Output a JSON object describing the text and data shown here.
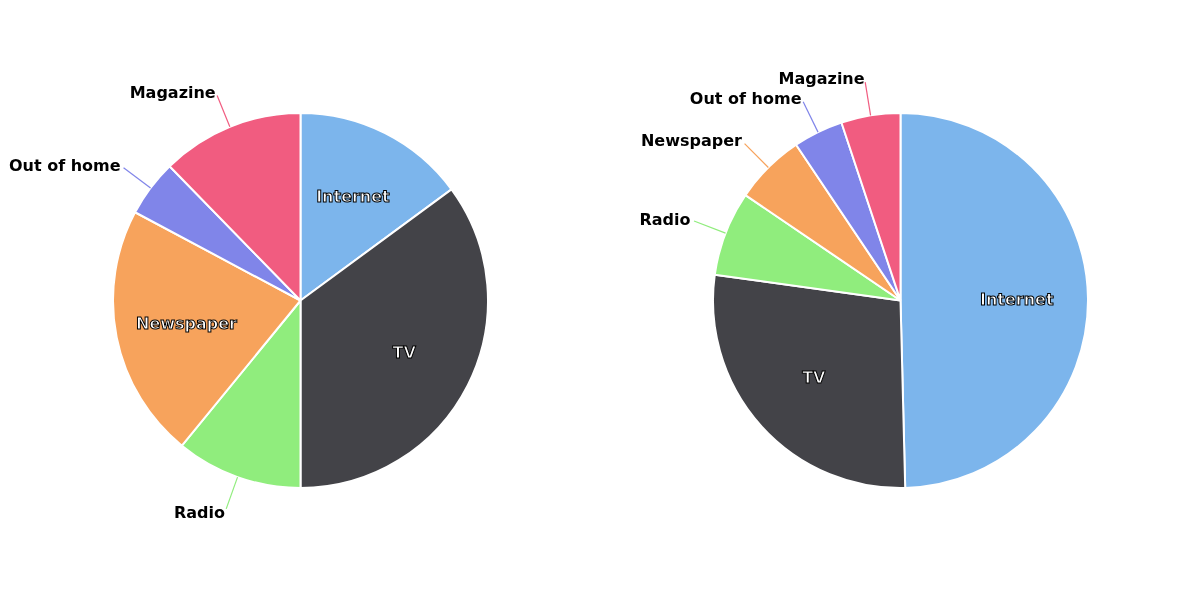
{
  "chart_data": [
    {
      "type": "pie",
      "categories": [
        "Internet",
        "TV",
        "Radio",
        "Newspaper",
        "Out of home",
        "Magazine"
      ],
      "values": [
        14.9,
        35.1,
        10.9,
        21.9,
        4.9,
        12.3
      ],
      "colors": [
        "#7cb5ec",
        "#434348",
        "#90ed7d",
        "#f7a35c",
        "#8085e9",
        "#f15c80"
      ]
    },
    {
      "type": "pie",
      "categories": [
        "Internet",
        "TV",
        "Radio",
        "Newspaper",
        "Out of home",
        "Magazine"
      ],
      "values": [
        49.6,
        27.6,
        7.3,
        6.1,
        4.3,
        5.1
      ],
      "colors": [
        "#7cb5ec",
        "#434348",
        "#90ed7d",
        "#f7a35c",
        "#8085e9",
        "#f15c80"
      ]
    }
  ]
}
